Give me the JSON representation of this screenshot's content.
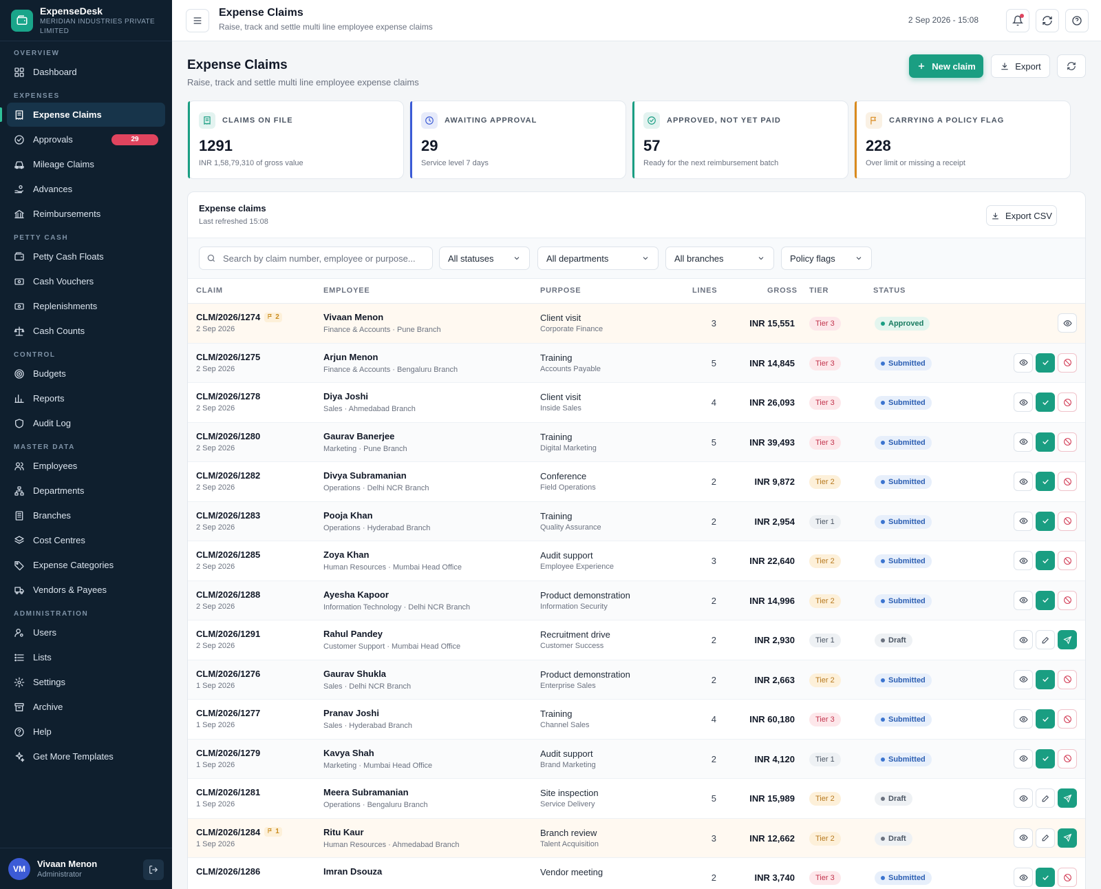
{
  "brand": {
    "name": "ExpenseDesk",
    "org": "MERIDIAN INDUSTRIES PRIVATE LIMITED"
  },
  "sidebar": {
    "sections": [
      {
        "label": "OVERVIEW",
        "items": [
          {
            "label": "Dashboard",
            "icon": "grid-icon"
          }
        ]
      },
      {
        "label": "EXPENSES",
        "items": [
          {
            "label": "Expense Claims",
            "icon": "receipt-icon",
            "active": true
          },
          {
            "label": "Approvals",
            "icon": "check-circle-icon",
            "badge": "29"
          },
          {
            "label": "Mileage Claims",
            "icon": "car-icon"
          },
          {
            "label": "Advances",
            "icon": "hand-coin-icon"
          },
          {
            "label": "Reimbursements",
            "icon": "bank-icon"
          }
        ]
      },
      {
        "label": "PETTY CASH",
        "items": [
          {
            "label": "Petty Cash Floats",
            "icon": "wallet-icon"
          },
          {
            "label": "Cash Vouchers",
            "icon": "banknote-icon"
          },
          {
            "label": "Replenishments",
            "icon": "banknote-icon"
          },
          {
            "label": "Cash Counts",
            "icon": "scale-icon"
          }
        ]
      },
      {
        "label": "CONTROL",
        "items": [
          {
            "label": "Budgets",
            "icon": "target-icon"
          },
          {
            "label": "Reports",
            "icon": "bar-chart-icon"
          },
          {
            "label": "Audit Log",
            "icon": "shield-icon"
          }
        ]
      },
      {
        "label": "MASTER DATA",
        "items": [
          {
            "label": "Employees",
            "icon": "users-icon"
          },
          {
            "label": "Departments",
            "icon": "hierarchy-icon"
          },
          {
            "label": "Branches",
            "icon": "building-icon"
          },
          {
            "label": "Cost Centres",
            "icon": "layers-icon"
          },
          {
            "label": "Expense Categories",
            "icon": "tag-icon"
          },
          {
            "label": "Vendors & Payees",
            "icon": "truck-icon"
          }
        ]
      },
      {
        "label": "ADMINISTRATION",
        "items": [
          {
            "label": "Users",
            "icon": "user-cog-icon"
          },
          {
            "label": "Lists",
            "icon": "list-icon"
          },
          {
            "label": "Settings",
            "icon": "gear-icon"
          },
          {
            "label": "Archive",
            "icon": "archive-icon"
          },
          {
            "label": "Help",
            "icon": "help-circle-icon"
          },
          {
            "label": "Get More Templates",
            "icon": "sparkles-icon"
          }
        ]
      }
    ]
  },
  "user": {
    "initials": "VM",
    "name": "Vivaan Menon",
    "role": "Administrator"
  },
  "topbar": {
    "title": "Expense Claims",
    "subtitle": "Raise, track and settle multi line employee expense claims",
    "datetime": "2 Sep 2026 - 15:08"
  },
  "page": {
    "title": "Expense Claims",
    "subtitle": "Raise, track and settle multi line employee expense claims",
    "new_claim_label": "New claim",
    "export_label": "Export"
  },
  "stats": [
    {
      "label": "CLAIMS ON FILE",
      "value": "1291",
      "note": "INR 1,58,79,310 of gross value",
      "color": "#1a9e82",
      "icon": "receipt-icon"
    },
    {
      "label": "AWAITING APPROVAL",
      "value": "29",
      "note": "Service level 7 days",
      "color": "#3b5bd6",
      "icon": "clock-icon"
    },
    {
      "label": "APPROVED, NOT YET PAID",
      "value": "57",
      "note": "Ready for the next reimbursement batch",
      "color": "#1a9e82",
      "icon": "check-circle-icon"
    },
    {
      "label": "CARRYING A POLICY FLAG",
      "value": "228",
      "note": "Over limit or missing a receipt",
      "color": "#d98a1e",
      "icon": "flag-icon"
    }
  ],
  "table_card": {
    "title": "Expense claims",
    "subtitle": "Last refreshed 15:08",
    "export_csv_label": "Export CSV",
    "search_placeholder": "Search by claim number, employee or purpose...",
    "filters": [
      "All statuses",
      "All departments",
      "All branches",
      "Policy flags"
    ],
    "columns": [
      "CLAIM",
      "EMPLOYEE",
      "PURPOSE",
      "LINES",
      "GROSS",
      "TIER",
      "STATUS"
    ]
  },
  "claims": [
    {
      "no": "CLM/2026/1274",
      "flags": "2",
      "date": "2 Sep 2026",
      "employee": "Vivaan Menon",
      "dept": "Finance & Accounts · Pune Branch",
      "purpose": "Client visit",
      "cost_centre": "Corporate Finance",
      "lines": "3",
      "gross": "INR 15,551",
      "tier": "Tier 3",
      "status": "Approved"
    },
    {
      "no": "CLM/2026/1275",
      "flags": "",
      "date": "2 Sep 2026",
      "employee": "Arjun Menon",
      "dept": "Finance & Accounts · Bengaluru Branch",
      "purpose": "Training",
      "cost_centre": "Accounts Payable",
      "lines": "5",
      "gross": "INR 14,845",
      "tier": "Tier 3",
      "status": "Submitted"
    },
    {
      "no": "CLM/2026/1278",
      "flags": "",
      "date": "2 Sep 2026",
      "employee": "Diya Joshi",
      "dept": "Sales · Ahmedabad Branch",
      "purpose": "Client visit",
      "cost_centre": "Inside Sales",
      "lines": "4",
      "gross": "INR 26,093",
      "tier": "Tier 3",
      "status": "Submitted"
    },
    {
      "no": "CLM/2026/1280",
      "flags": "",
      "date": "2 Sep 2026",
      "employee": "Gaurav Banerjee",
      "dept": "Marketing · Pune Branch",
      "purpose": "Training",
      "cost_centre": "Digital Marketing",
      "lines": "5",
      "gross": "INR 39,493",
      "tier": "Tier 3",
      "status": "Submitted"
    },
    {
      "no": "CLM/2026/1282",
      "flags": "",
      "date": "2 Sep 2026",
      "employee": "Divya Subramanian",
      "dept": "Operations · Delhi NCR Branch",
      "purpose": "Conference",
      "cost_centre": "Field Operations",
      "lines": "2",
      "gross": "INR 9,872",
      "tier": "Tier 2",
      "status": "Submitted"
    },
    {
      "no": "CLM/2026/1283",
      "flags": "",
      "date": "2 Sep 2026",
      "employee": "Pooja Khan",
      "dept": "Operations · Hyderabad Branch",
      "purpose": "Training",
      "cost_centre": "Quality Assurance",
      "lines": "2",
      "gross": "INR 2,954",
      "tier": "Tier 1",
      "status": "Submitted"
    },
    {
      "no": "CLM/2026/1285",
      "flags": "",
      "date": "2 Sep 2026",
      "employee": "Zoya Khan",
      "dept": "Human Resources · Mumbai Head Office",
      "purpose": "Audit support",
      "cost_centre": "Employee Experience",
      "lines": "3",
      "gross": "INR 22,640",
      "tier": "Tier 2",
      "status": "Submitted"
    },
    {
      "no": "CLM/2026/1288",
      "flags": "",
      "date": "2 Sep 2026",
      "employee": "Ayesha Kapoor",
      "dept": "Information Technology · Delhi NCR Branch",
      "purpose": "Product demonstration",
      "cost_centre": "Information Security",
      "lines": "2",
      "gross": "INR 14,996",
      "tier": "Tier 2",
      "status": "Submitted"
    },
    {
      "no": "CLM/2026/1291",
      "flags": "",
      "date": "2 Sep 2026",
      "employee": "Rahul Pandey",
      "dept": "Customer Support · Mumbai Head Office",
      "purpose": "Recruitment drive",
      "cost_centre": "Customer Success",
      "lines": "2",
      "gross": "INR 2,930",
      "tier": "Tier 1",
      "status": "Draft"
    },
    {
      "no": "CLM/2026/1276",
      "flags": "",
      "date": "1 Sep 2026",
      "employee": "Gaurav Shukla",
      "dept": "Sales · Delhi NCR Branch",
      "purpose": "Product demonstration",
      "cost_centre": "Enterprise Sales",
      "lines": "2",
      "gross": "INR 2,663",
      "tier": "Tier 2",
      "status": "Submitted"
    },
    {
      "no": "CLM/2026/1277",
      "flags": "",
      "date": "1 Sep 2026",
      "employee": "Pranav Joshi",
      "dept": "Sales · Hyderabad Branch",
      "purpose": "Training",
      "cost_centre": "Channel Sales",
      "lines": "4",
      "gross": "INR 60,180",
      "tier": "Tier 3",
      "status": "Submitted"
    },
    {
      "no": "CLM/2026/1279",
      "flags": "",
      "date": "1 Sep 2026",
      "employee": "Kavya Shah",
      "dept": "Marketing · Mumbai Head Office",
      "purpose": "Audit support",
      "cost_centre": "Brand Marketing",
      "lines": "2",
      "gross": "INR 4,120",
      "tier": "Tier 1",
      "status": "Submitted"
    },
    {
      "no": "CLM/2026/1281",
      "flags": "",
      "date": "1 Sep 2026",
      "employee": "Meera Subramanian",
      "dept": "Operations · Bengaluru Branch",
      "purpose": "Site inspection",
      "cost_centre": "Service Delivery",
      "lines": "5",
      "gross": "INR 15,989",
      "tier": "Tier 2",
      "status": "Draft"
    },
    {
      "no": "CLM/2026/1284",
      "flags": "1",
      "date": "1 Sep 2026",
      "employee": "Ritu Kaur",
      "dept": "Human Resources · Ahmedabad Branch",
      "purpose": "Branch review",
      "cost_centre": "Talent Acquisition",
      "lines": "3",
      "gross": "INR 12,662",
      "tier": "Tier 2",
      "status": "Draft"
    },
    {
      "no": "CLM/2026/1286",
      "flags": "",
      "date": "",
      "employee": "Imran Dsouza",
      "dept": "",
      "purpose": "Vendor meeting",
      "cost_centre": "",
      "lines": "2",
      "gross": "INR 3,740",
      "tier": "Tier 3",
      "status": "Submitted"
    }
  ]
}
